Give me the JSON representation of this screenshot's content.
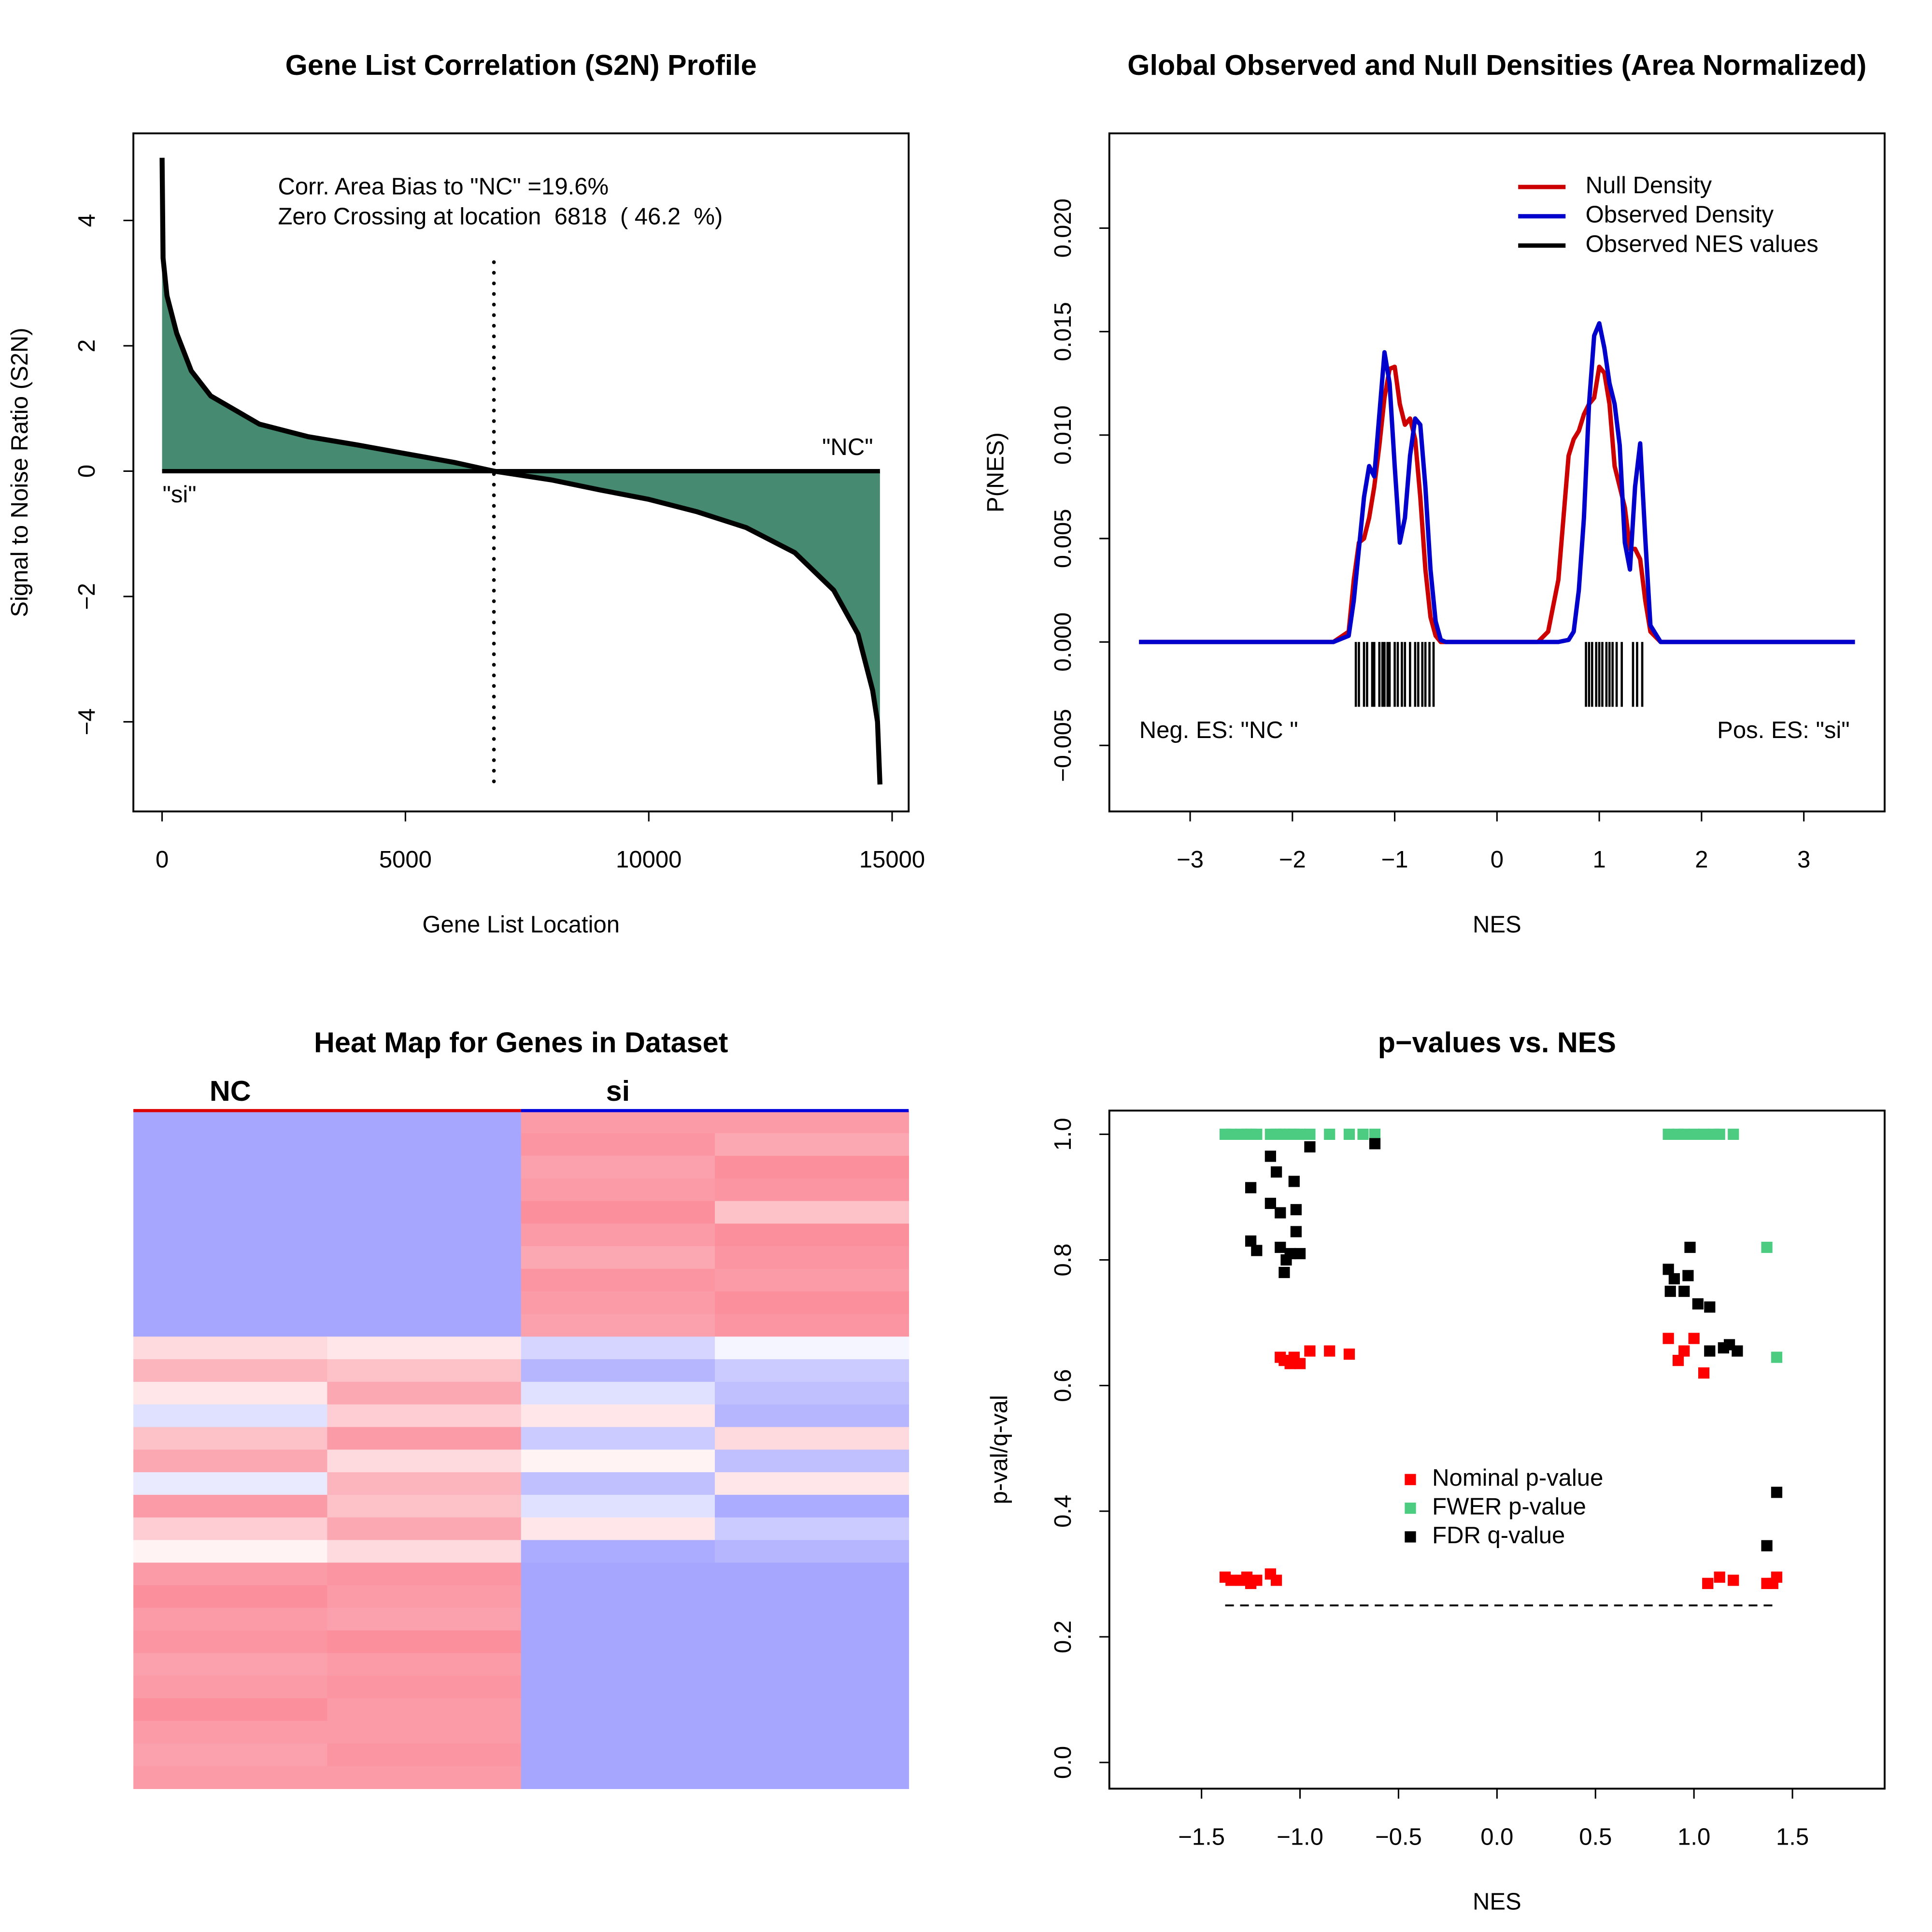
{
  "chart_data": [
    {
      "type": "area",
      "title": "Gene List Correlation (S2N) Profile",
      "x_label": "Gene List Location",
      "y_label": "Signal to Noise Ratio (S2N)",
      "annotations": [
        "Corr. Area Bias to \"NC\" =19.6%",
        "Zero Crossing at location  6818  ( 46.2  %)",
        "\"NC\"",
        "\"si\""
      ],
      "zero_crossing": 6818,
      "color": "#000000",
      "fill_color": "#468a72",
      "x": [
        0,
        20,
        100,
        300,
        600,
        1000,
        2000,
        3000,
        4000,
        5000,
        6000,
        6818,
        8000,
        9000,
        10000,
        11000,
        12000,
        13000,
        13800,
        14300,
        14600,
        14700,
        14750
      ],
      "values": [
        5.0,
        3.4,
        2.8,
        2.2,
        1.6,
        1.2,
        0.75,
        0.55,
        0.42,
        0.28,
        0.14,
        0,
        -0.14,
        -0.3,
        -0.45,
        -0.65,
        -0.9,
        -1.3,
        -1.9,
        -2.6,
        -3.5,
        -4.0,
        -5.0
      ],
      "xlim": [
        -590,
        15340
      ],
      "ylim": [
        -5.43,
        5.39
      ],
      "xticks": [
        0,
        5000,
        10000,
        15000
      ],
      "yticks": [
        {
          "value": -4,
          "label": "−4"
        },
        {
          "value": -2,
          "label": "−2"
        },
        0,
        2,
        4
      ]
    },
    {
      "type": "line",
      "title": "Global Observed and Null Densities (Area Normalized)",
      "x_label": "NES",
      "y_label": "P(NES)",
      "annotations": [
        "Neg. ES: \"NC \"",
        "Pos. ES: \"si\""
      ],
      "x": [
        -3.5,
        -1.6,
        -1.45,
        -1.4,
        -1.35,
        -1.3,
        -1.25,
        -1.2,
        -1.15,
        -1.1,
        -1.05,
        -1.0,
        -0.95,
        -0.9,
        -0.85,
        -0.8,
        -0.75,
        -0.7,
        -0.65,
        -0.6,
        -0.55,
        -0.5,
        0.4,
        0.5,
        0.6,
        0.7,
        0.75,
        0.8,
        0.85,
        0.9,
        0.95,
        1.0,
        1.05,
        1.1,
        1.15,
        1.2,
        1.25,
        1.3,
        1.35,
        1.4,
        1.45,
        1.5,
        1.6,
        3.5
      ],
      "series": [
        {
          "name": "Null Density",
          "color": "#cc0000",
          "values": [
            0,
            0,
            0.0005,
            0.003,
            0.0048,
            0.005,
            0.006,
            0.0075,
            0.0095,
            0.0118,
            0.0132,
            0.0133,
            0.0115,
            0.0105,
            0.0108,
            0.0098,
            0.007,
            0.0035,
            0.0012,
            0.0003,
            0,
            0,
            0,
            0.0005,
            0.003,
            0.009,
            0.0098,
            0.0102,
            0.011,
            0.0115,
            0.0118,
            0.0133,
            0.013,
            0.0115,
            0.0085,
            0.0075,
            0.0065,
            0.0045,
            0.0045,
            0.004,
            0.002,
            0.0005,
            0,
            0
          ]
        },
        {
          "name": "Observed Density",
          "color": "#0000cc",
          "values": [
            0,
            0,
            0.0003,
            0.002,
            0.0045,
            0.007,
            0.0085,
            0.008,
            0.011,
            0.014,
            0.0125,
            0.0085,
            0.0048,
            0.006,
            0.009,
            0.0108,
            0.0105,
            0.0075,
            0.0035,
            0.001,
            0.0001,
            0,
            0,
            0,
            0,
            0.0001,
            0.0005,
            0.0025,
            0.006,
            0.0115,
            0.0148,
            0.0154,
            0.0142,
            0.0125,
            0.0115,
            0.0095,
            0.0048,
            0.0035,
            0.0075,
            0.0096,
            0.005,
            0.0008,
            0,
            0
          ]
        }
      ],
      "rug": {
        "name": "Observed NES values",
        "color": "#000000",
        "x": [
          -1.38,
          -1.35,
          -1.3,
          -1.27,
          -1.22,
          -1.2,
          -1.15,
          -1.12,
          -1.1,
          -1.07,
          -1.05,
          -1.0,
          -0.97,
          -0.93,
          -0.9,
          -0.85,
          -0.8,
          -0.77,
          -0.73,
          -0.7,
          -0.66,
          -0.62,
          0.87,
          0.9,
          0.93,
          0.97,
          1.0,
          1.03,
          1.07,
          1.1,
          1.13,
          1.17,
          1.22,
          1.33,
          1.37,
          1.42
        ]
      },
      "xlim": [
        -3.79,
        3.79
      ],
      "ylim": [
        -0.00819,
        0.02458
      ],
      "xticks": [
        {
          "value": -3,
          "label": "−3"
        },
        {
          "value": -2,
          "label": "−2"
        },
        {
          "value": -1,
          "label": "−1"
        },
        0,
        1,
        2,
        3
      ],
      "yticks": [
        {
          "value": -0.005,
          "label": "−0.005"
        },
        {
          "value": 0,
          "label": "0.000"
        },
        0.005,
        {
          "value": 0.01,
          "label": "0.010"
        },
        0.015,
        {
          "value": 0.02,
          "label": "0.020"
        }
      ]
    },
    {
      "type": "heatmap",
      "title": "Heat Map for Genes in Dataset",
      "groups": [
        {
          "name": "NC",
          "color": "#dd0000"
        },
        {
          "name": "si",
          "color": "#0000dd"
        }
      ],
      "matrix": [
        [
          -0.85,
          -0.85,
          0.8,
          0.8
        ],
        [
          -0.85,
          -0.85,
          0.85,
          0.7
        ],
        [
          -0.85,
          -0.85,
          0.75,
          0.9
        ],
        [
          -0.85,
          -0.85,
          0.8,
          0.85
        ],
        [
          -0.85,
          -0.85,
          0.9,
          0.5
        ],
        [
          -0.85,
          -0.85,
          0.8,
          0.9
        ],
        [
          -0.85,
          -0.85,
          0.7,
          0.85
        ],
        [
          -0.85,
          -0.85,
          0.85,
          0.8
        ],
        [
          -0.85,
          -0.85,
          0.8,
          0.9
        ],
        [
          -0.85,
          -0.85,
          0.75,
          0.85
        ],
        [
          0.3,
          0.2,
          -0.4,
          -0.1
        ],
        [
          0.6,
          0.5,
          -0.7,
          -0.5
        ],
        [
          0.2,
          0.7,
          -0.3,
          -0.6
        ],
        [
          -0.3,
          0.4,
          0.2,
          -0.7
        ],
        [
          0.5,
          0.8,
          -0.5,
          0.3
        ],
        [
          0.7,
          0.3,
          0.1,
          -0.6
        ],
        [
          -0.2,
          0.6,
          -0.6,
          0.2
        ],
        [
          0.8,
          0.5,
          -0.3,
          -0.8
        ],
        [
          0.4,
          0.7,
          0.2,
          -0.5
        ],
        [
          0.1,
          0.3,
          -0.8,
          -0.7
        ],
        [
          0.8,
          0.85,
          -0.85,
          -0.85
        ],
        [
          0.9,
          0.8,
          -0.85,
          -0.85
        ],
        [
          0.8,
          0.75,
          -0.85,
          -0.85
        ],
        [
          0.85,
          0.9,
          -0.85,
          -0.85
        ],
        [
          0.75,
          0.8,
          -0.85,
          -0.85
        ],
        [
          0.8,
          0.85,
          -0.85,
          -0.85
        ],
        [
          0.9,
          0.8,
          -0.85,
          -0.85
        ],
        [
          0.8,
          0.8,
          -0.85,
          -0.85
        ],
        [
          0.75,
          0.85,
          -0.85,
          -0.85
        ],
        [
          0.8,
          0.8,
          -0.85,
          -0.85
        ]
      ]
    },
    {
      "type": "scatter",
      "title": "p−values vs. NES",
      "x_label": "NES",
      "y_label": "p-val/q-val",
      "hline": 0.25,
      "series": [
        {
          "name": "Nominal p-value",
          "color": "#ff0000",
          "x": [
            -1.38,
            -1.35,
            -1.3,
            -1.27,
            -1.25,
            -1.22,
            -1.15,
            -1.12,
            -1.1,
            -1.08,
            -1.05,
            -1.03,
            -1.0,
            -0.95,
            -0.85,
            -0.75,
            0.87,
            0.92,
            0.95,
            1.0,
            1.05,
            1.07,
            1.13,
            1.2,
            1.37,
            1.4,
            1.42
          ],
          "values": [
            0.295,
            0.29,
            0.29,
            0.295,
            0.285,
            0.29,
            0.3,
            0.29,
            0.645,
            0.64,
            0.635,
            0.645,
            0.635,
            0.655,
            0.655,
            0.65,
            0.675,
            0.64,
            0.655,
            0.675,
            0.62,
            0.285,
            0.295,
            0.29,
            0.285,
            0.285,
            0.295
          ]
        },
        {
          "name": "FWER p-value",
          "color": "#4ccc80",
          "x": [
            -1.38,
            -1.35,
            -1.3,
            -1.27,
            -1.25,
            -1.22,
            -1.15,
            -1.12,
            -1.1,
            -1.08,
            -1.05,
            -1.03,
            -1.0,
            -0.95,
            -0.85,
            -0.75,
            -0.68,
            -0.62,
            0.87,
            0.92,
            0.95,
            1.0,
            1.05,
            1.1,
            1.13,
            1.2,
            1.37,
            1.42
          ],
          "values": [
            1.0,
            1.0,
            1.0,
            1.0,
            1.0,
            1.0,
            1.0,
            1.0,
            1.0,
            1.0,
            1.0,
            1.0,
            1.0,
            1.0,
            1.0,
            1.0,
            1.0,
            1.0,
            1.0,
            1.0,
            1.0,
            1.0,
            1.0,
            1.0,
            1.0,
            1.0,
            0.82,
            0.645
          ]
        },
        {
          "name": "FDR q-value",
          "color": "#000000",
          "x": [
            -1.25,
            -1.22,
            -1.25,
            -1.15,
            -1.15,
            -1.12,
            -1.1,
            -1.1,
            -1.08,
            -1.07,
            -1.05,
            -1.03,
            -1.02,
            -1.02,
            -1.0,
            -0.95,
            -0.62,
            0.87,
            0.88,
            0.9,
            0.95,
            0.97,
            0.98,
            1.02,
            1.08,
            1.08,
            1.15,
            1.18,
            1.22,
            1.37,
            1.42
          ],
          "values": [
            0.83,
            0.815,
            0.915,
            0.965,
            0.89,
            0.94,
            0.875,
            0.82,
            0.78,
            0.8,
            0.81,
            0.925,
            0.88,
            0.845,
            0.81,
            0.98,
            0.985,
            0.785,
            0.75,
            0.77,
            0.75,
            0.775,
            0.82,
            0.73,
            0.725,
            0.655,
            0.66,
            0.665,
            0.655,
            0.345,
            0.43
          ]
        }
      ],
      "xlim": [
        -1.968,
        1.968
      ],
      "ylim": [
        -0.0417,
        1.0377
      ],
      "xticks": [
        {
          "value": -1.5,
          "label": "−1.5"
        },
        {
          "value": -1.0,
          "label": "−1.0"
        },
        {
          "value": -0.5,
          "label": "−0.5"
        },
        {
          "value": 0,
          "label": "0.0"
        },
        0.5,
        {
          "value": 1.0,
          "label": "1.0"
        },
        1.5
      ],
      "yticks": [
        {
          "value": 0,
          "label": "0.0"
        },
        0.2,
        0.4,
        0.6,
        0.8,
        {
          "value": 1.0,
          "label": "1.0"
        }
      ]
    }
  ]
}
